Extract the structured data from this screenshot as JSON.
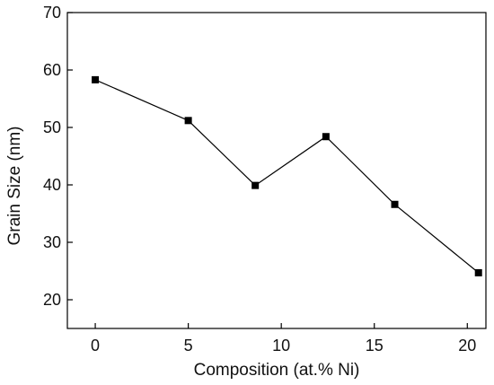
{
  "chart_data": {
    "type": "line",
    "title": "",
    "xlabel": "Composition (at.% Ni)",
    "ylabel": "Grain Size (nm)",
    "xlim": [
      -1.5,
      21
    ],
    "ylim": [
      15,
      70
    ],
    "xticks": [
      0,
      5,
      10,
      15,
      20
    ],
    "yticks": [
      20,
      30,
      40,
      50,
      60,
      70
    ],
    "grid": false,
    "legend": "none",
    "marker": "square",
    "color": "#000000",
    "series": [
      {
        "x": [
          0,
          5,
          8.6,
          12.4,
          16.1,
          20.6
        ],
        "y": [
          58.3,
          51.2,
          39.9,
          48.4,
          36.6,
          24.7
        ]
      }
    ]
  }
}
